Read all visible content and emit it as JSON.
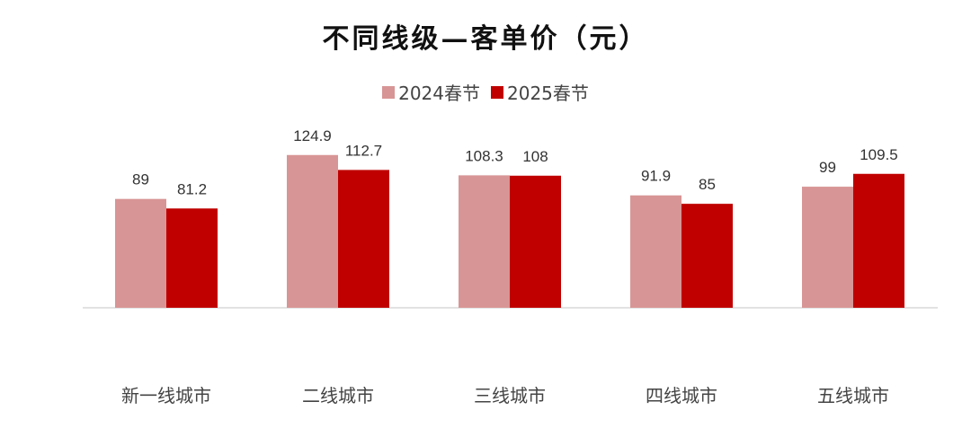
{
  "chart_data": {
    "type": "bar",
    "title": "不同线级—客单价（元）",
    "categories": [
      "新一线城市",
      "二线城市",
      "三线城市",
      "四线城市",
      "五线城市"
    ],
    "series": [
      {
        "name": "2024春节",
        "color": "#d89595",
        "values": [
          89,
          124.9,
          108.3,
          91.9,
          99
        ]
      },
      {
        "name": "2025春节",
        "color": "#c00000",
        "values": [
          81.2,
          112.7,
          108,
          85,
          109.5
        ]
      }
    ],
    "data_labels": [
      [
        "89",
        "124.9",
        "108.3",
        "91.9",
        "99"
      ],
      [
        "81.2",
        "112.7",
        "108",
        "85",
        "109.5"
      ]
    ],
    "xlabel": "",
    "ylabel": "",
    "ylim": [
      0,
      130
    ],
    "grid": false,
    "legend_position": "top-center"
  }
}
